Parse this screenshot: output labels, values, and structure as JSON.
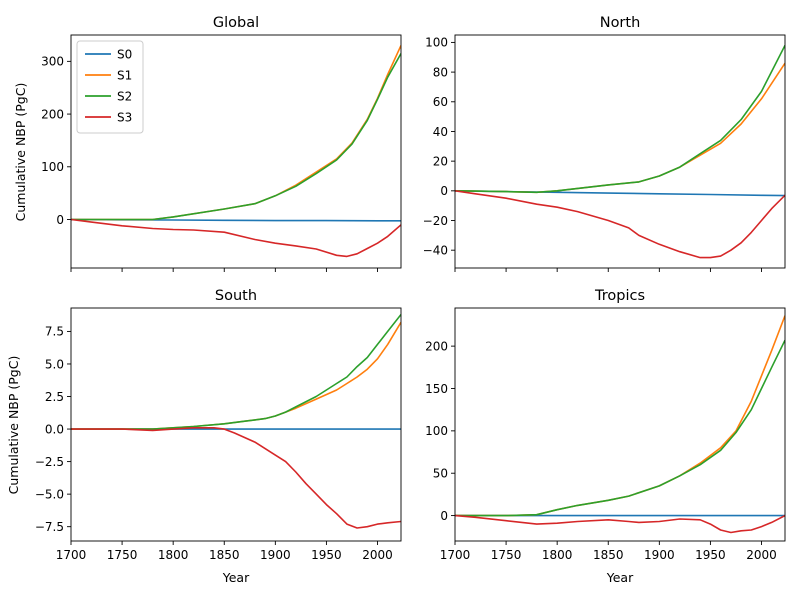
{
  "figure": {
    "x_label": "Year",
    "y_label": "Cumulative NBP (PgC)"
  },
  "series_colors": {
    "S0": "#1f77b4",
    "S1": "#ff7f0e",
    "S2": "#2ca02c",
    "S3": "#d62728"
  },
  "legend": {
    "placement": "upper-left",
    "entries": [
      "S0",
      "S1",
      "S2",
      "S3"
    ]
  },
  "chart_data": [
    {
      "type": "line",
      "title": "Global",
      "xlabel": "",
      "ylabel": "Cumulative NBP (PgC)",
      "xlim": [
        1700,
        2023
      ],
      "ylim": [
        -92,
        350
      ],
      "xticks": [
        1700,
        1750,
        1800,
        1850,
        1900,
        1950,
        2000
      ],
      "xtick_labels_shown": false,
      "yticks": [
        0,
        100,
        200,
        300
      ],
      "ytick_labels": [
        "0",
        "100",
        "200",
        "300"
      ],
      "legend": "upper-left",
      "series": [
        {
          "name": "S0",
          "x": [
            1700,
            1750,
            1800,
            1850,
            1900,
            1950,
            2000,
            2023
          ],
          "y": [
            0,
            -0.5,
            -1,
            -1.5,
            -2,
            -2,
            -2.5,
            -2.5
          ]
        },
        {
          "name": "S1",
          "x": [
            1700,
            1750,
            1780,
            1800,
            1850,
            1880,
            1900,
            1920,
            1940,
            1960,
            1975,
            1990,
            2000,
            2010,
            2023
          ],
          "y": [
            0,
            0,
            0,
            5,
            20,
            30,
            45,
            65,
            90,
            115,
            145,
            190,
            230,
            275,
            330
          ]
        },
        {
          "name": "S2",
          "x": [
            1700,
            1750,
            1780,
            1800,
            1850,
            1880,
            1900,
            1920,
            1940,
            1960,
            1975,
            1990,
            2000,
            2010,
            2023
          ],
          "y": [
            0,
            0,
            0,
            5,
            20,
            30,
            45,
            63,
            87,
            113,
            143,
            188,
            228,
            270,
            315
          ]
        },
        {
          "name": "S3",
          "x": [
            1700,
            1720,
            1750,
            1780,
            1800,
            1820,
            1850,
            1880,
            1900,
            1920,
            1940,
            1960,
            1970,
            1980,
            1990,
            2000,
            2010,
            2023
          ],
          "y": [
            0,
            -5,
            -12,
            -17,
            -19,
            -20,
            -24,
            -38,
            -45,
            -50,
            -56,
            -68,
            -70,
            -65,
            -55,
            -45,
            -32,
            -10
          ]
        }
      ]
    },
    {
      "type": "line",
      "title": "North",
      "xlabel": "",
      "ylabel": "",
      "xlim": [
        1700,
        2023
      ],
      "ylim": [
        -52,
        105
      ],
      "xticks": [
        1700,
        1750,
        1800,
        1850,
        1900,
        1950,
        2000
      ],
      "xtick_labels_shown": false,
      "yticks": [
        -40,
        -20,
        0,
        20,
        40,
        60,
        80,
        100
      ],
      "ytick_labels": [
        "−40",
        "−20",
        "0",
        "20",
        "40",
        "60",
        "80",
        "100"
      ],
      "series": [
        {
          "name": "S0",
          "x": [
            1700,
            1750,
            1800,
            1850,
            1900,
            1950,
            2000,
            2023
          ],
          "y": [
            0,
            -0.5,
            -1,
            -1.5,
            -2,
            -2.5,
            -3,
            -3.2
          ]
        },
        {
          "name": "S1",
          "x": [
            1700,
            1750,
            1780,
            1800,
            1850,
            1880,
            1900,
            1920,
            1940,
            1960,
            1980,
            2000,
            2023
          ],
          "y": [
            0,
            -0.5,
            -1,
            0,
            4,
            6,
            10,
            16,
            24,
            32,
            45,
            62,
            86
          ]
        },
        {
          "name": "S2",
          "x": [
            1700,
            1750,
            1780,
            1800,
            1850,
            1880,
            1900,
            1920,
            1940,
            1960,
            1980,
            2000,
            2023
          ],
          "y": [
            0,
            -0.5,
            -1,
            0,
            4,
            6,
            10,
            16,
            25,
            34,
            48,
            67,
            98
          ]
        },
        {
          "name": "S3",
          "x": [
            1700,
            1720,
            1750,
            1780,
            1800,
            1820,
            1850,
            1870,
            1880,
            1900,
            1920,
            1940,
            1950,
            1960,
            1970,
            1980,
            1990,
            2000,
            2010,
            2023
          ],
          "y": [
            0,
            -2,
            -5,
            -9,
            -11,
            -14,
            -20,
            -25,
            -30,
            -36,
            -41,
            -45,
            -45,
            -44,
            -40,
            -35,
            -28,
            -20,
            -12,
            -3
          ]
        }
      ]
    },
    {
      "type": "line",
      "title": "South",
      "xlabel": "Year",
      "ylabel": "Cumulative NBP (PgC)",
      "xlim": [
        1700,
        2023
      ],
      "ylim": [
        -8.6,
        9.3
      ],
      "xticks": [
        1700,
        1750,
        1800,
        1850,
        1900,
        1950,
        2000
      ],
      "xtick_labels": [
        "1700",
        "1750",
        "1800",
        "1850",
        "1900",
        "1950",
        "2000"
      ],
      "xtick_labels_shown": true,
      "yticks": [
        -7.5,
        -5.0,
        -2.5,
        0.0,
        2.5,
        5.0,
        7.5
      ],
      "ytick_labels": [
        "−7.5",
        "−5.0",
        "−2.5",
        "0.0",
        "2.5",
        "5.0",
        "7.5"
      ],
      "series": [
        {
          "name": "S0",
          "x": [
            1700,
            1750,
            1800,
            1850,
            1900,
            1950,
            2000,
            2023
          ],
          "y": [
            0,
            0,
            0,
            0,
            0,
            0,
            0,
            0
          ]
        },
        {
          "name": "S1",
          "x": [
            1700,
            1750,
            1780,
            1800,
            1820,
            1850,
            1870,
            1890,
            1900,
            1910,
            1920,
            1940,
            1960,
            1970,
            1980,
            1990,
            2000,
            2010,
            2023
          ],
          "y": [
            0,
            0,
            0,
            0.1,
            0.2,
            0.4,
            0.6,
            0.8,
            1.0,
            1.3,
            1.6,
            2.3,
            3.0,
            3.5,
            4.0,
            4.6,
            5.4,
            6.5,
            8.2
          ]
        },
        {
          "name": "S2",
          "x": [
            1700,
            1750,
            1780,
            1800,
            1820,
            1850,
            1870,
            1890,
            1900,
            1910,
            1920,
            1940,
            1960,
            1970,
            1980,
            1990,
            2000,
            2010,
            2023
          ],
          "y": [
            0,
            0,
            0,
            0.1,
            0.2,
            0.4,
            0.6,
            0.8,
            1.0,
            1.3,
            1.7,
            2.5,
            3.5,
            4.0,
            4.8,
            5.5,
            6.5,
            7.5,
            8.8
          ]
        },
        {
          "name": "S3",
          "x": [
            1700,
            1750,
            1780,
            1800,
            1820,
            1840,
            1850,
            1860,
            1880,
            1900,
            1910,
            1920,
            1930,
            1940,
            1950,
            1960,
            1970,
            1980,
            1990,
            2000,
            2010,
            2023
          ],
          "y": [
            0,
            0,
            -0.1,
            0,
            0.1,
            0.1,
            0,
            -0.3,
            -1.0,
            -2.0,
            -2.5,
            -3.3,
            -4.2,
            -5.0,
            -5.8,
            -6.5,
            -7.3,
            -7.6,
            -7.5,
            -7.3,
            -7.2,
            -7.1
          ]
        }
      ]
    },
    {
      "type": "line",
      "title": "Tropics",
      "xlabel": "Year",
      "ylabel": "",
      "xlim": [
        1700,
        2023
      ],
      "ylim": [
        -30,
        245
      ],
      "xticks": [
        1700,
        1750,
        1800,
        1850,
        1900,
        1950,
        2000
      ],
      "xtick_labels": [
        "1700",
        "1750",
        "1800",
        "1850",
        "1900",
        "1950",
        "2000"
      ],
      "xtick_labels_shown": true,
      "yticks": [
        0,
        50,
        100,
        150,
        200
      ],
      "ytick_labels": [
        "0",
        "50",
        "100",
        "150",
        "200"
      ],
      "series": [
        {
          "name": "S0",
          "x": [
            1700,
            1750,
            1800,
            1850,
            1900,
            1950,
            2000,
            2023
          ],
          "y": [
            0,
            0,
            0,
            0,
            0,
            0,
            0,
            0
          ]
        },
        {
          "name": "S1",
          "x": [
            1700,
            1750,
            1780,
            1800,
            1820,
            1850,
            1870,
            1900,
            1920,
            1940,
            1960,
            1975,
            1990,
            2000,
            2010,
            2023
          ],
          "y": [
            0,
            0,
            1,
            7,
            12,
            18,
            23,
            35,
            47,
            62,
            80,
            100,
            135,
            165,
            195,
            236
          ]
        },
        {
          "name": "S2",
          "x": [
            1700,
            1750,
            1780,
            1800,
            1820,
            1850,
            1870,
            1900,
            1920,
            1940,
            1960,
            1975,
            1990,
            2000,
            2010,
            2023
          ],
          "y": [
            0,
            0,
            1,
            7,
            12,
            18,
            23,
            35,
            47,
            60,
            77,
            98,
            125,
            150,
            175,
            207
          ]
        },
        {
          "name": "S3",
          "x": [
            1700,
            1720,
            1750,
            1780,
            1800,
            1820,
            1850,
            1870,
            1880,
            1900,
            1920,
            1940,
            1950,
            1960,
            1970,
            1980,
            1990,
            2000,
            2010,
            2023
          ],
          "y": [
            0,
            -2,
            -6,
            -10,
            -9,
            -7,
            -5,
            -7,
            -8,
            -7,
            -4,
            -5,
            -10,
            -17,
            -20,
            -18,
            -17,
            -13,
            -8,
            0
          ]
        }
      ]
    }
  ]
}
